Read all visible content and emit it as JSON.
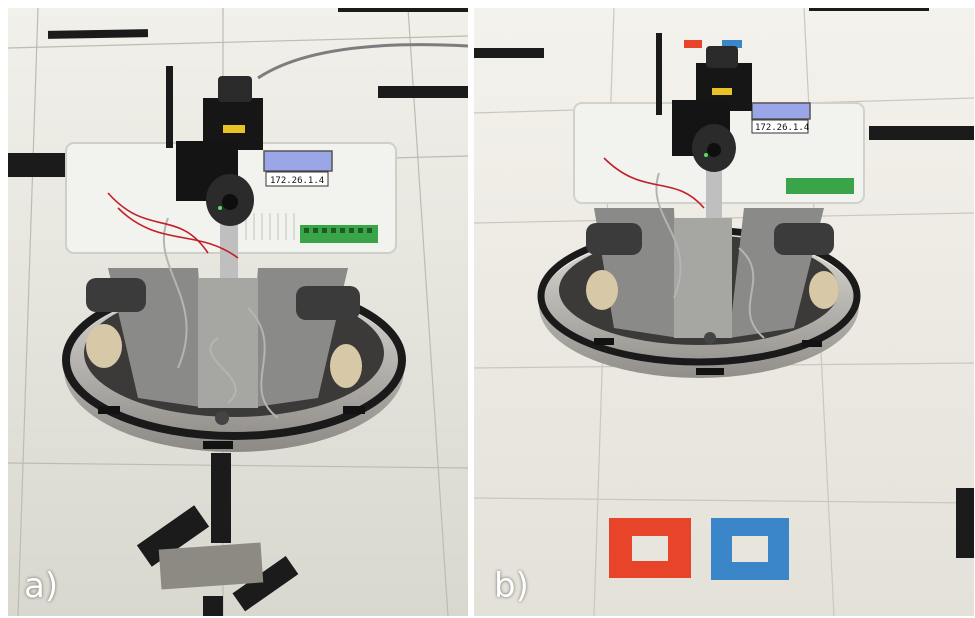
{
  "figure": {
    "panels": [
      {
        "label": "a)",
        "robot_ip": "172.26.1.4"
      },
      {
        "label": "b)",
        "robot_ip": "172.26.1.4"
      }
    ]
  },
  "colors": {
    "floor": "#e8e6dc",
    "tape_black": "#1b1b1b",
    "robot_body": "#f2f2ee",
    "lcd": "#9aa6e8",
    "terminal_green": "#3aa548",
    "marker_red": "#e8442a",
    "marker_blue": "#3a86c8"
  }
}
